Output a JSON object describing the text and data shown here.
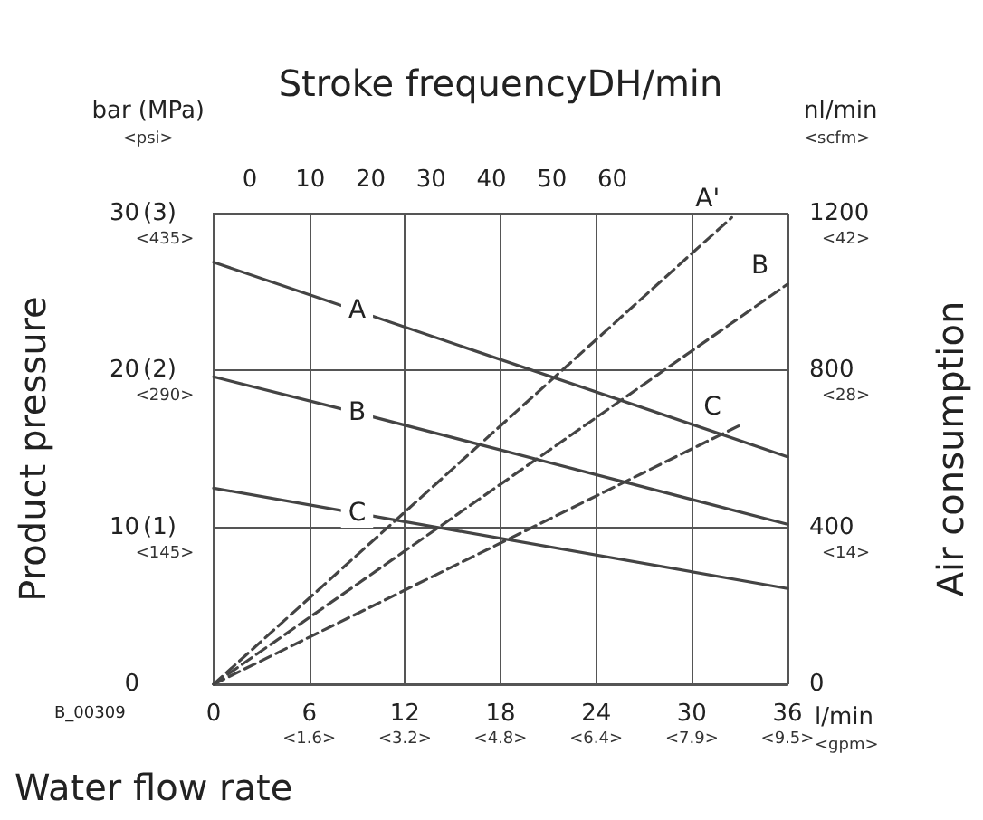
{
  "chart_data": {
    "type": "line",
    "x2label": "Stroke frequencyDH/min",
    "xlabel": "Water flow rate",
    "ylabel": "Product pressure",
    "y2label": "Air consumption",
    "annotations": [
      "bar (MPa)\n<psi>",
      "nl/min\n<scfm>",
      "l/min\n<gpm>",
      "B_00309",
      "<1.6>",
      "<3.2>",
      "<4.8>",
      "<6.4>",
      "<7.9>",
      "<9.5>",
      "<14>",
      "<28>",
      "<42>",
      "<145>",
      "<290>",
      "<435>",
      "(1)",
      "(2)",
      "(3)"
    ],
    "xlim": [
      0,
      36
    ],
    "xticks": [
      0,
      6,
      12,
      18,
      24,
      30,
      36
    ],
    "x2lim": [
      -6,
      89
    ],
    "x2ticks": [
      0,
      10,
      20,
      30,
      40,
      50,
      60
    ],
    "ylim": [
      0,
      30
    ],
    "yticks": [
      0,
      10,
      20,
      30
    ],
    "y2lim": [
      0,
      1200
    ],
    "y2ticks": [
      0,
      400,
      800,
      1200
    ],
    "grid": true,
    "series": [
      {
        "name": "A",
        "color": "#444444",
        "line_style": "solid",
        "x": [
          0,
          9,
          36
        ],
        "values": [
          26.9,
          23.8,
          14.5
        ]
      },
      {
        "name": "B",
        "color": "#444444",
        "line_style": "solid",
        "x": [
          0,
          9,
          36
        ],
        "values": [
          19.6,
          17.3,
          10.2
        ]
      },
      {
        "name": "C",
        "color": "#444444",
        "line_style": "solid",
        "x": [
          0,
          9,
          36
        ],
        "values": [
          12.5,
          10.9,
          6.1
        ]
      },
      {
        "name": "A'",
        "color": "#444444",
        "line_style": "dashed",
        "axis": "y2",
        "x": [
          0,
          32.5
        ],
        "values": [
          0,
          1190
        ]
      },
      {
        "name": "B",
        "color": "#444444",
        "line_style": "dashed",
        "axis": "y2",
        "x": [
          0,
          36
        ],
        "values": [
          0,
          1020
        ]
      },
      {
        "name": "C",
        "color": "#444444",
        "line_style": "dashed",
        "axis": "y2",
        "x": [
          0,
          33
        ],
        "values": [
          0,
          660
        ]
      }
    ]
  }
}
